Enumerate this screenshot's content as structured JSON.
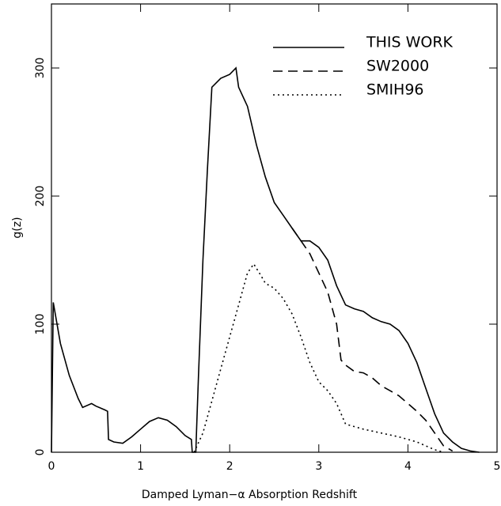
{
  "chart_data": {
    "type": "line",
    "xlabel": "Damped Lyman−α Absorption Redshift",
    "ylabel": "g(z)",
    "xlim": [
      0,
      5
    ],
    "xticks": [
      0,
      1,
      2,
      3,
      4,
      5
    ],
    "ylim": [
      0,
      350
    ],
    "yticks": [
      0,
      100,
      200,
      300
    ],
    "legend": "upper right",
    "series": [
      {
        "name": "THIS WORK",
        "color": "#000000",
        "style": "solid",
        "x": [
          0.0,
          0.02,
          0.1,
          0.2,
          0.3,
          0.35,
          0.45,
          0.5,
          0.6,
          0.63,
          0.64,
          0.7,
          0.8,
          0.9,
          1.0,
          1.1,
          1.2,
          1.3,
          1.4,
          1.5,
          1.57,
          1.58,
          1.62,
          1.63,
          1.65,
          1.7,
          1.75,
          1.8,
          1.9,
          2.0,
          2.07,
          2.1,
          2.2,
          2.3,
          2.4,
          2.5,
          2.6,
          2.7,
          2.8,
          2.9,
          3.0,
          3.1,
          3.2,
          3.3,
          3.4,
          3.5,
          3.6,
          3.7,
          3.8,
          3.9,
          4.0,
          4.1,
          4.2,
          4.3,
          4.4,
          4.5,
          4.6,
          4.7,
          4.8
        ],
        "values": [
          0,
          117,
          85,
          60,
          42,
          35,
          38,
          36,
          33,
          32,
          10,
          8,
          7,
          12,
          18,
          24,
          27,
          25,
          20,
          13,
          10,
          0,
          0,
          20,
          60,
          150,
          220,
          285,
          292,
          295,
          300,
          285,
          270,
          240,
          215,
          195,
          185,
          175,
          165,
          165,
          160,
          150,
          130,
          115,
          112,
          110,
          105,
          102,
          100,
          95,
          85,
          70,
          50,
          30,
          15,
          8,
          3,
          1,
          0
        ]
      },
      {
        "name": "SW2000",
        "color": "#000000",
        "style": "dashed",
        "x": [
          2.7,
          2.8,
          2.9,
          3.0,
          3.1,
          3.2,
          3.25,
          3.3,
          3.4,
          3.5,
          3.6,
          3.7,
          3.8,
          3.9,
          4.0,
          4.1,
          4.2,
          4.3,
          4.4,
          4.5
        ],
        "values": [
          175,
          165,
          155,
          140,
          125,
          100,
          72,
          68,
          63,
          62,
          58,
          52,
          48,
          44,
          38,
          32,
          25,
          15,
          5,
          1
        ]
      },
      {
        "name": "SMIH96",
        "color": "#000000",
        "style": "dotted",
        "x": [
          1.6,
          1.7,
          1.8,
          1.9,
          2.0,
          2.1,
          2.2,
          2.27,
          2.35,
          2.4,
          2.5,
          2.6,
          2.7,
          2.8,
          2.9,
          3.0,
          3.1,
          3.2,
          3.3,
          3.4,
          3.5,
          3.7,
          3.9,
          4.0,
          4.1,
          4.2,
          4.3,
          4.4
        ],
        "values": [
          0,
          15,
          40,
          65,
          90,
          115,
          140,
          147,
          138,
          132,
          128,
          120,
          108,
          90,
          70,
          55,
          48,
          38,
          22,
          20,
          18,
          15,
          12,
          10,
          8,
          5,
          2,
          0
        ]
      }
    ]
  }
}
